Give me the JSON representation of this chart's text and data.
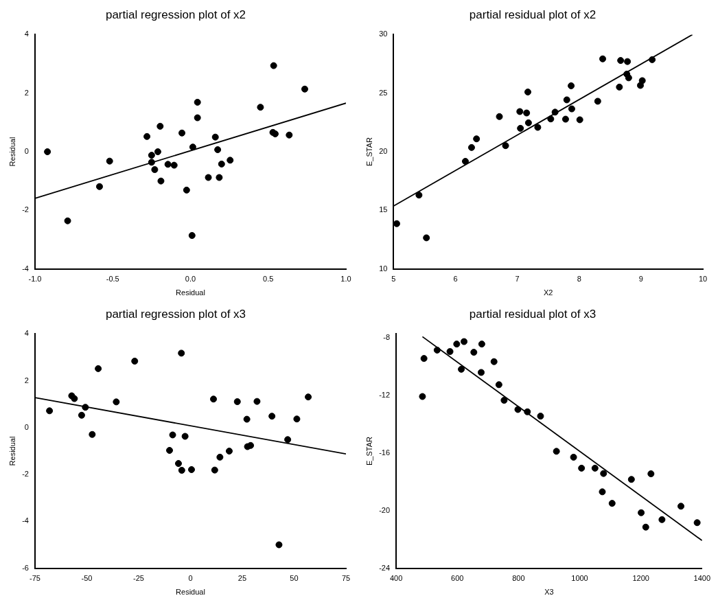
{
  "chart_data": [
    {
      "type": "scatter",
      "title": "partial regression plot of x2",
      "xlabel": "Residual",
      "ylabel": "Residual",
      "grid": false,
      "legend": false,
      "marker": "circle",
      "xlim": [
        -1,
        1
      ],
      "xticks": [
        {
          "value": -1,
          "label": "-1.0"
        },
        {
          "value": -0.5,
          "label": "-0.5"
        },
        {
          "value": 0,
          "label": "0.0"
        },
        {
          "value": 0.5,
          "label": "0.5"
        },
        {
          "value": 1,
          "label": "1.0"
        }
      ],
      "ylim": [
        -4,
        4
      ],
      "yticks": [
        -4,
        -2,
        0,
        2,
        4
      ],
      "series": [
        {
          "color": "#000000",
          "x": [
            -0.92,
            -0.79,
            -0.585,
            -0.52,
            -0.28,
            -0.25,
            -0.25,
            -0.23,
            -0.21,
            -0.195,
            -0.19,
            -0.145,
            -0.105,
            -0.055,
            -0.025,
            0.01,
            0.015,
            0.045,
            0.045,
            0.115,
            0.16,
            0.175,
            0.185,
            0.2,
            0.255,
            0.45,
            0.53,
            0.545,
            0.535,
            0.635,
            0.735
          ],
          "values": [
            0.0,
            -2.36,
            -1.19,
            -0.32,
            0.52,
            -0.12,
            -0.36,
            -0.61,
            0.0,
            0.87,
            -1.0,
            -0.43,
            -0.46,
            0.64,
            -1.31,
            -2.86,
            0.16,
            1.16,
            1.69,
            -0.88,
            0.5,
            0.07,
            -0.88,
            -0.42,
            -0.29,
            1.52,
            0.66,
            0.61,
            2.94,
            0.57,
            2.14
          ]
        },
        {
          "type": "line",
          "color": "#000000",
          "marker": "none",
          "line_style": "solid",
          "x": [
            -1,
            1
          ],
          "values": [
            -1.59,
            1.66
          ]
        }
      ]
    },
    {
      "type": "scatter",
      "title": "partial residual plot of x2",
      "xlabel": "X2",
      "ylabel": "E_STAR",
      "grid": false,
      "legend": false,
      "marker": "circle",
      "xlim": [
        5,
        10
      ],
      "xticks": [
        5,
        6,
        7,
        8,
        9,
        10
      ],
      "ylim": [
        10,
        30
      ],
      "yticks": [
        10,
        15,
        20,
        25,
        30
      ],
      "series": [
        {
          "color": "#000000",
          "x": [
            5.05,
            5.41,
            5.53,
            6.16,
            6.26,
            6.34,
            6.71,
            6.81,
            7.04,
            7.05,
            7.15,
            7.17,
            7.18,
            7.33,
            7.54,
            7.61,
            7.78,
            7.8,
            7.87,
            7.88,
            8.01,
            8.3,
            8.38,
            8.65,
            8.67,
            8.78,
            8.77,
            8.8,
            8.99,
            9.02,
            9.18
          ],
          "values": [
            13.86,
            16.3,
            12.65,
            19.18,
            20.36,
            21.1,
            23.0,
            20.52,
            23.43,
            22.0,
            23.31,
            25.1,
            22.47,
            22.08,
            22.8,
            23.38,
            22.78,
            24.43,
            25.63,
            23.66,
            22.73,
            24.31,
            27.93,
            25.52,
            27.79,
            27.7,
            26.63,
            26.31,
            25.66,
            26.07,
            27.86
          ]
        },
        {
          "type": "line",
          "color": "#000000",
          "marker": "none",
          "line_style": "solid",
          "x": [
            5,
            9.83
          ],
          "values": [
            15.37,
            30.0
          ]
        }
      ]
    },
    {
      "type": "scatter",
      "title": "partial regression plot of x3",
      "xlabel": "Residual",
      "ylabel": "Residual",
      "grid": false,
      "legend": false,
      "marker": "circle",
      "xlim": [
        -75,
        75
      ],
      "xticks": [
        -75,
        -50,
        -25,
        0,
        25,
        50,
        75
      ],
      "ylim": [
        -6,
        4
      ],
      "yticks": [
        -6,
        -4,
        -2,
        0,
        2,
        4
      ],
      "series": [
        {
          "color": "#000000",
          "x": [
            -68.0,
            -57.3,
            -56.0,
            -52.5,
            -50.7,
            -47.4,
            -44.5,
            -35.8,
            -26.9,
            -10.1,
            -8.6,
            -5.8,
            -4.4,
            -4.2,
            -2.6,
            0.5,
            11.1,
            11.7,
            14.2,
            18.7,
            22.6,
            27.2,
            27.5,
            29.0,
            32.1,
            39.3,
            42.7,
            46.9,
            51.3,
            56.8
          ],
          "values": [
            0.72,
            1.36,
            1.24,
            0.53,
            0.87,
            -0.29,
            2.52,
            1.1,
            2.84,
            -0.97,
            -0.31,
            -1.53,
            3.18,
            -1.82,
            -0.37,
            -1.79,
            1.22,
            -1.81,
            -1.26,
            -1.0,
            1.11,
            0.36,
            -0.81,
            -0.76,
            1.12,
            0.49,
            -5.0,
            -0.51,
            0.37,
            1.31
          ]
        },
        {
          "type": "line",
          "color": "#000000",
          "marker": "none",
          "line_style": "solid",
          "x": [
            -75,
            75
          ],
          "values": [
            1.28,
            -1.12
          ]
        }
      ]
    },
    {
      "type": "scatter",
      "title": "partial residual plot of x3",
      "xlabel": "X3",
      "ylabel": "E_STAR",
      "grid": false,
      "legend": false,
      "marker": "circle",
      "xlim": [
        400,
        1400
      ],
      "xticks": [
        400,
        600,
        800,
        1000,
        1200,
        1400
      ],
      "ylim": [
        -24,
        -7.75
      ],
      "yticks": [
        -24,
        -20,
        -16,
        -12,
        -8
      ],
      "series": [
        {
          "color": "#000000",
          "x": [
            486,
            491,
            534,
            576,
            598,
            613,
            622,
            654,
            678,
            680,
            720,
            736,
            753,
            798,
            829,
            872,
            924,
            980,
            1006,
            1050,
            1078,
            1074,
            1106,
            1169,
            1201,
            1216,
            1233,
            1269,
            1331,
            1384
          ],
          "values": [
            -12.09,
            -9.45,
            -8.87,
            -8.97,
            -8.45,
            -10.2,
            -8.28,
            -9.02,
            -10.42,
            -8.45,
            -9.67,
            -11.27,
            -12.35,
            -12.99,
            -13.15,
            -13.45,
            -15.89,
            -16.3,
            -17.06,
            -17.06,
            -17.43,
            -18.7,
            -19.5,
            -17.84,
            -20.15,
            -21.15,
            -17.45,
            -20.63,
            -19.7,
            -20.84
          ]
        },
        {
          "type": "line",
          "color": "#000000",
          "marker": "none",
          "line_style": "solid",
          "x": [
            486,
            1400
          ],
          "values": [
            -7.94,
            -22.08
          ]
        }
      ]
    }
  ]
}
